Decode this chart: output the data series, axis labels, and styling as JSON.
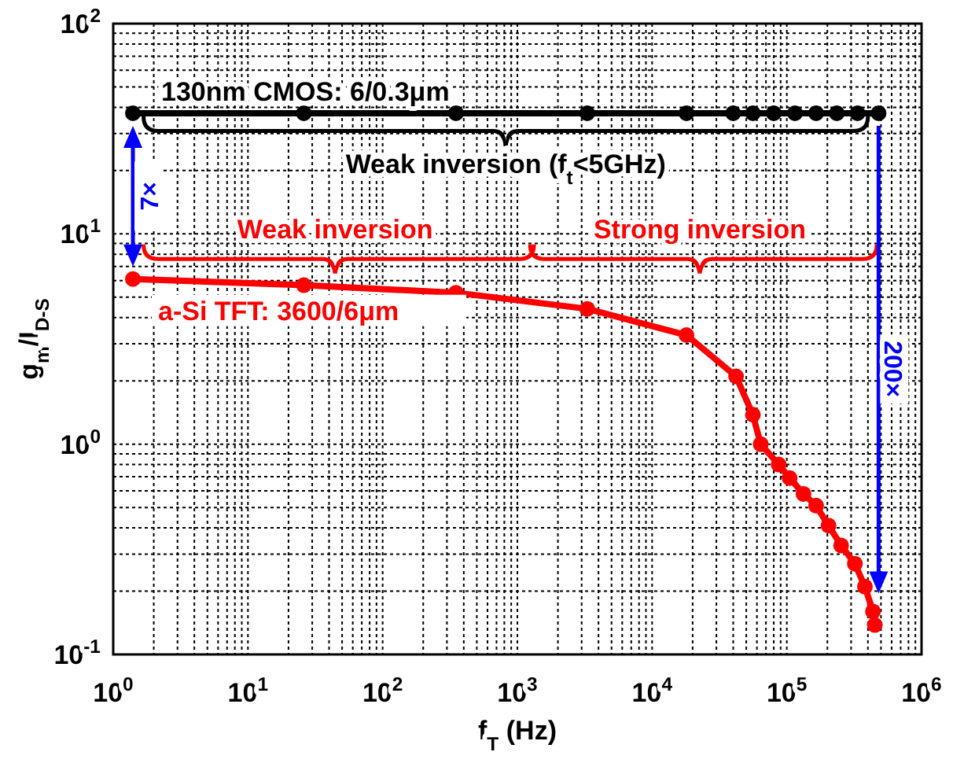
{
  "chart_data": {
    "type": "line",
    "xlabel": "f$_{T}$ (Hz)",
    "ylabel": "g$_{m}$/I$_{D-S}$",
    "log": "xy",
    "grid": true,
    "legend": false,
    "marker": "circle",
    "line_style": "solid",
    "xlim": [
      1,
      1000000
    ],
    "ylim": [
      0.1,
      100
    ],
    "xticks": [
      {
        "value": 1,
        "label": "10$^{0}$"
      },
      {
        "value": 10,
        "label": "10$^{1}$"
      },
      {
        "value": 100,
        "label": "10$^{2}$"
      },
      {
        "value": 1000,
        "label": "10$^{3}$"
      },
      {
        "value": 10000,
        "label": "10$^{4}$"
      },
      {
        "value": 100000,
        "label": "10$^{5}$"
      },
      {
        "value": 1000000,
        "label": "10$^{6}$"
      }
    ],
    "yticks": [
      {
        "value": 0.1,
        "label": "10$^{-1}$"
      },
      {
        "value": 1,
        "label": "10$^{0}$"
      },
      {
        "value": 10,
        "label": "10$^{1}$"
      },
      {
        "value": 100,
        "label": "10$^{2}$"
      }
    ],
    "series": [
      {
        "name": "130nm CMOS: 6/0.3μm",
        "color": "#000000",
        "x": [
          1.4,
          26,
          350,
          3300,
          18000,
          40000,
          56000,
          80000,
          115000,
          165000,
          235000,
          335000,
          480000
        ],
        "values": [
          37.5,
          37.5,
          37.5,
          37.5,
          37.5,
          37.5,
          37.5,
          37.5,
          37.5,
          37.5,
          37.5,
          37.5,
          37.5
        ]
      },
      {
        "name": "a-Si TFT: 3600/6μm",
        "color": "#ff0000",
        "x": [
          1.4,
          26,
          350,
          3300,
          18000,
          42000,
          56000,
          64000,
          87000,
          105000,
          133000,
          165000,
          204000,
          253000,
          320000,
          380000,
          436000,
          450000
        ],
        "values": [
          6.1,
          5.7,
          5.25,
          4.4,
          3.3,
          2.1,
          1.38,
          1.0,
          0.8,
          0.69,
          0.58,
          0.51,
          0.41,
          0.33,
          0.27,
          0.21,
          0.16,
          0.138
        ]
      }
    ],
    "annotations": [
      "Weak inversion (f$_{t}$<5GHz)",
      "Weak inversion",
      "Strong inversion",
      "7×",
      "200×"
    ]
  }
}
